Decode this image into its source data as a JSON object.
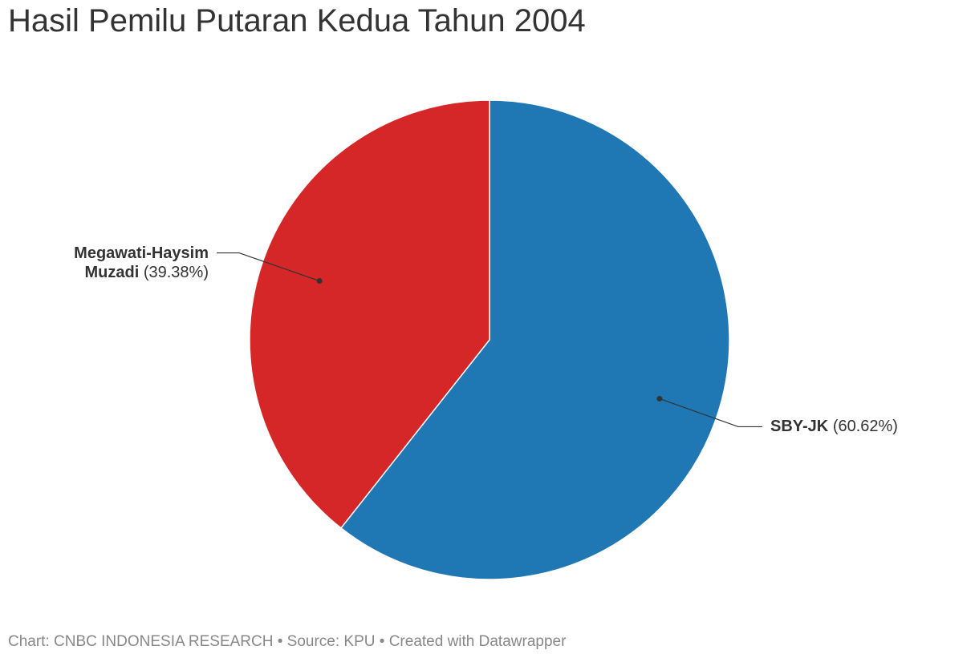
{
  "chart_data": {
    "type": "pie",
    "title": "Hasil Pemilu Putaran Kedua Tahun 2004",
    "categories": [
      "SBY-JK",
      "Megawati-Haysim Muzadi"
    ],
    "values": [
      60.62,
      39.38
    ],
    "value_labels": [
      "(60.62%)",
      "(39.38%)"
    ],
    "colors": [
      "#1f77b4",
      "#d62728"
    ],
    "footer": "Chart: CNBC INDONESIA RESEARCH • Source: KPU • Created with Datawrapper"
  }
}
